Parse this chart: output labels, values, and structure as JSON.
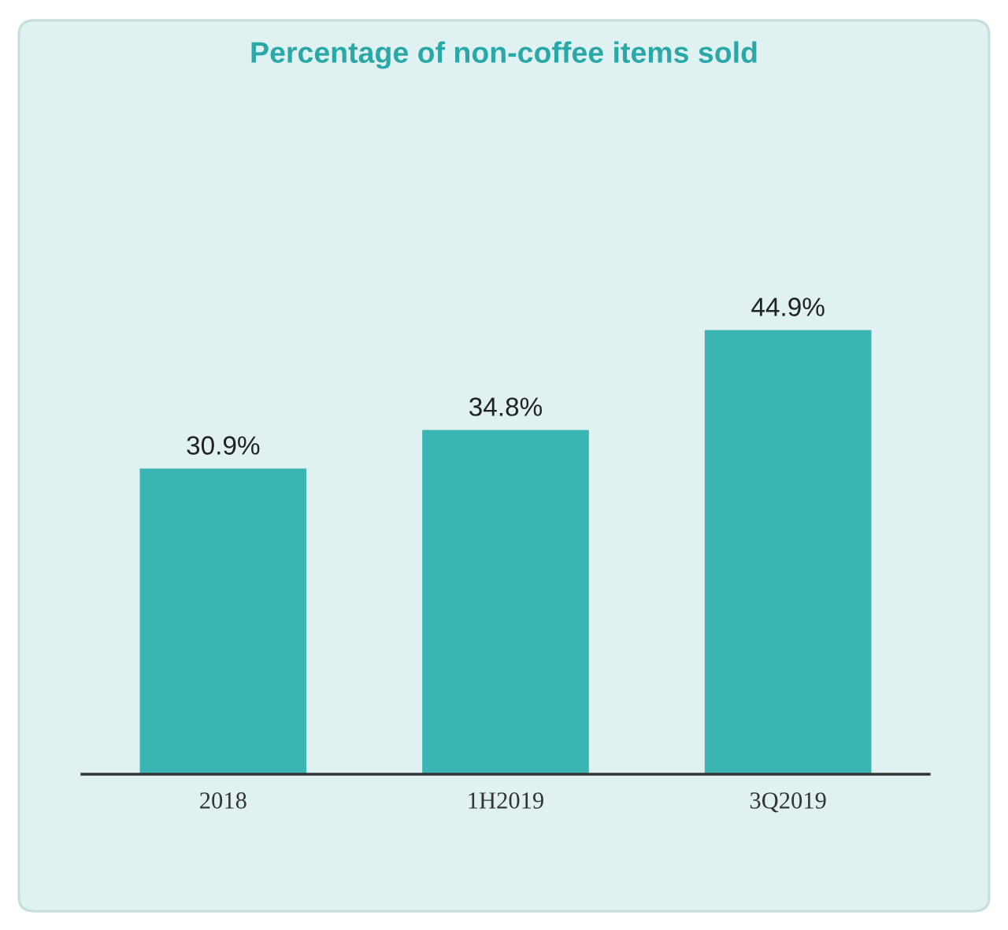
{
  "chart_data": {
    "type": "bar",
    "title": "Percentage of non-coffee items sold",
    "categories": [
      "2018",
      "1H2019",
      "3Q2019"
    ],
    "values": [
      30.9,
      34.8,
      44.9
    ],
    "value_labels": [
      "30.9%",
      "34.8%",
      "44.9%"
    ],
    "color": "#3ab5b4"
  }
}
